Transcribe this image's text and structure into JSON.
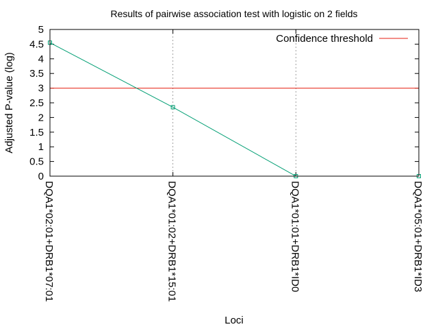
{
  "chart_data": {
    "type": "line",
    "title": "Results of pairwise association test with logistic on 2 fields",
    "xlabel": "Loci",
    "ylabel": "Adjusted P-value (log)",
    "categories": [
      "DQA1*02:01+DRB1*07:01",
      "DQA1*01:02+DRB1*15:01",
      "DQA1*01:01+DRB1*ID0",
      "DQA1*05:01+DRB1*ID3"
    ],
    "series": [
      {
        "values": [
          4.55,
          2.35,
          0,
          0
        ],
        "color": "#009e73"
      }
    ],
    "threshold": {
      "name": "Confidence threshold",
      "value": 3,
      "color": "#e51e10"
    },
    "ylim": [
      0,
      5
    ],
    "yticks": [
      "0",
      "0.5",
      "1",
      "1.5",
      "2",
      "2.5",
      "3",
      "3.5",
      "4",
      "4.5",
      "5"
    ],
    "grid": "vertical dotted at x ticks",
    "legend": "top-right"
  }
}
